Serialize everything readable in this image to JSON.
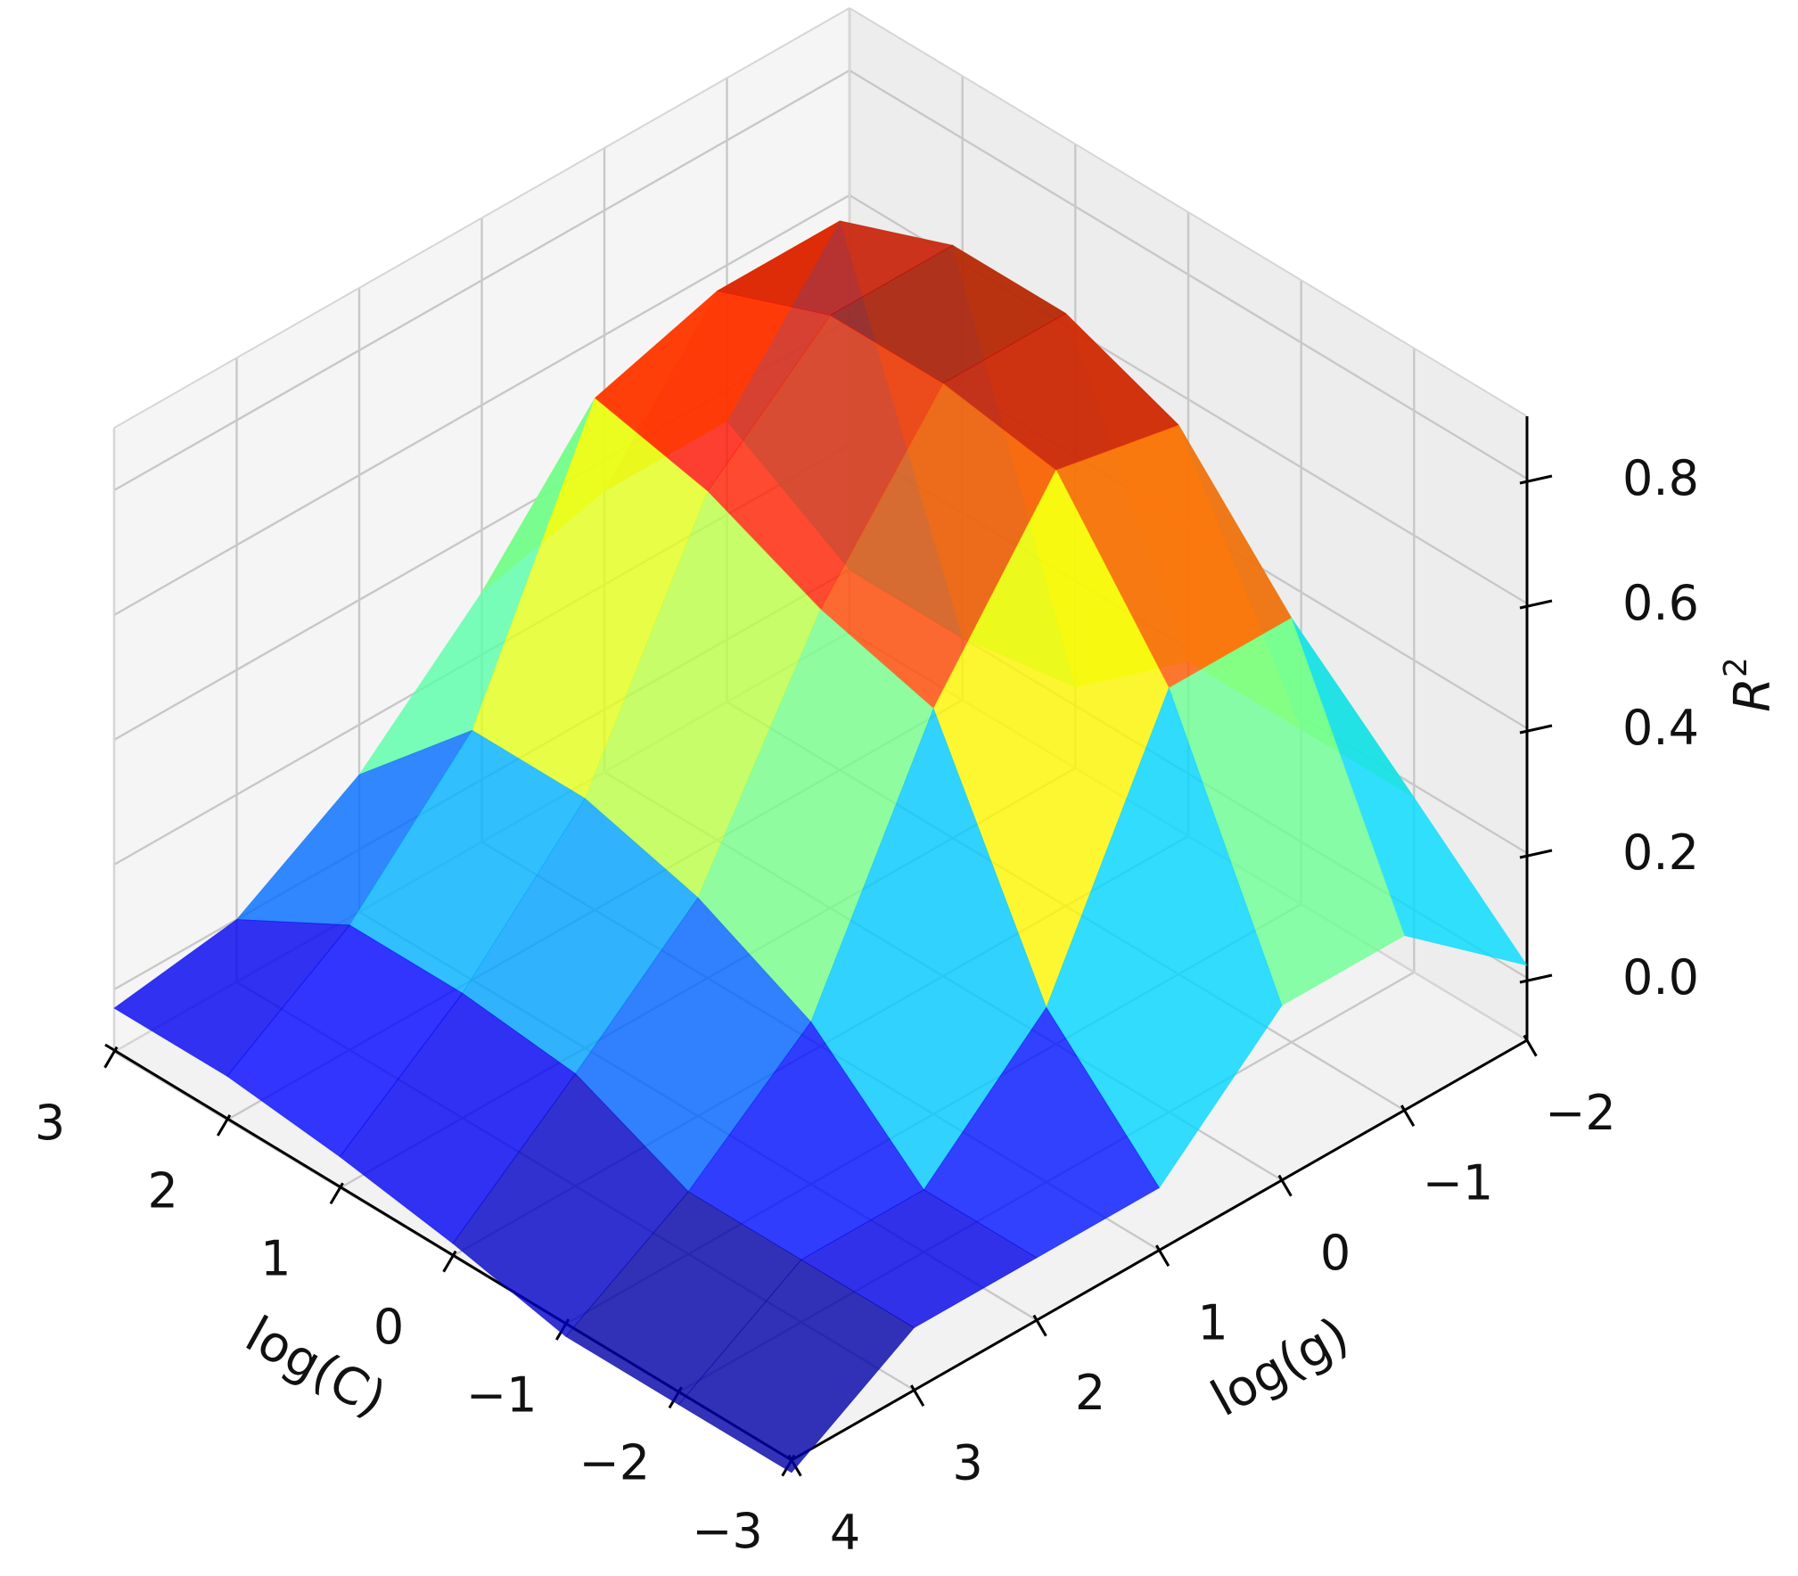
{
  "chart_data": {
    "type": "surface3d",
    "title": "",
    "xlabel": "log(C)",
    "ylabel": "log(g)",
    "zlabel": {
      "main": "R",
      "sup": "2"
    },
    "x_ticks": [
      3,
      2,
      1,
      0,
      -1,
      -2,
      -3
    ],
    "x_tick_labels": [
      "3",
      "2",
      "1",
      "0",
      "−1",
      "−2",
      "−3"
    ],
    "y_ticks": [
      -2,
      -1,
      0,
      1,
      2,
      3,
      4
    ],
    "y_tick_labels": [
      "−2",
      "−1",
      "0",
      "1",
      "2",
      "3",
      "4"
    ],
    "z_ticks": [
      0.0,
      0.2,
      0.4,
      0.6,
      0.8
    ],
    "z_tick_labels": [
      "0.0",
      "0.2",
      "0.4",
      "0.6",
      "0.8"
    ],
    "xlim": [
      -3,
      3
    ],
    "ylim": [
      -2,
      4
    ],
    "zlim": [
      -0.1,
      0.9
    ],
    "grid": true,
    "colormap": "jet",
    "pane_color": "#f2f2f2",
    "x": [
      -3,
      -2,
      -1,
      0,
      1,
      2,
      3
    ],
    "y": [
      -2,
      -1,
      0,
      1,
      2,
      3,
      4
    ],
    "z": [
      [
        0.02,
        0.18,
        0.18,
        0.0,
        0.0,
        0.0,
        -0.12
      ],
      [
        0.18,
        0.58,
        0.58,
        0.18,
        0.0,
        0.0,
        -0.12
      ],
      [
        0.18,
        0.78,
        0.82,
        0.55,
        0.16,
        0.0,
        -0.12
      ],
      [
        0.18,
        0.85,
        0.85,
        0.6,
        0.25,
        0.08,
        -0.08
      ],
      [
        0.03,
        0.85,
        0.85,
        0.68,
        0.3,
        0.1,
        -0.05
      ],
      [
        0.0,
        0.78,
        0.78,
        0.72,
        0.3,
        0.1,
        -0.03
      ],
      [
        0.0,
        0.35,
        0.35,
        0.3,
        0.12,
        0.0,
        -0.03
      ]
    ]
  }
}
